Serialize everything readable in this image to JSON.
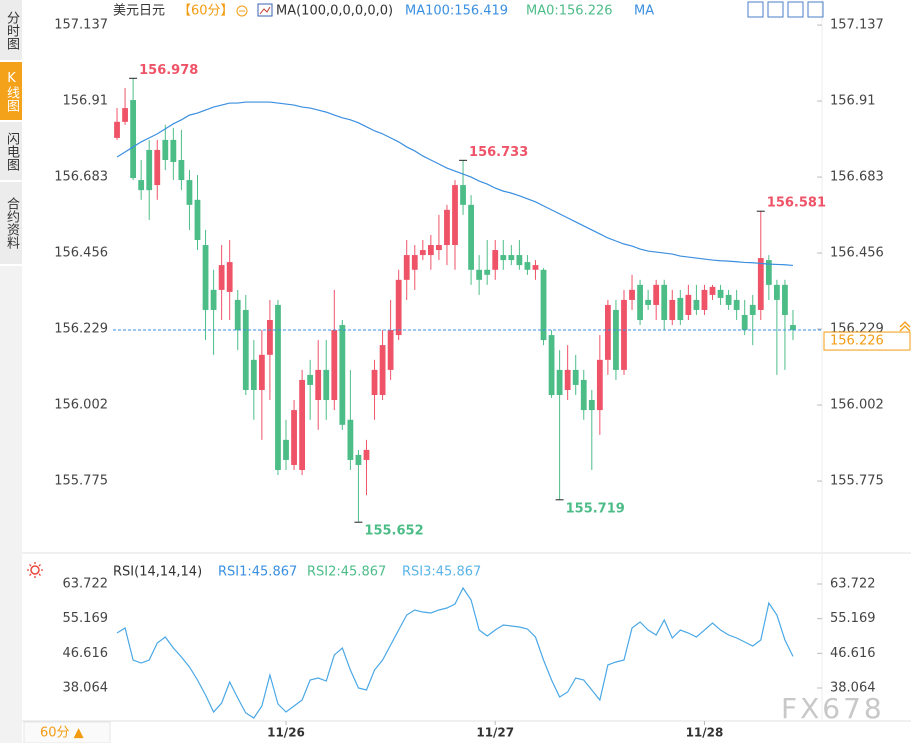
{
  "chart_data": [
    {
      "type": "candlestick",
      "title": "美元日元",
      "period": "【60分】",
      "indicator": "MA(100,0,0,0,0,0)",
      "legend_items": [
        {
          "text": "MA100:156.419",
          "color": "#3a8fe0"
        },
        {
          "text": "MA0:156.226",
          "color": "#4dbd88"
        },
        {
          "text": "MA",
          "color": "#3a8fe0"
        }
      ],
      "categories": [
        null,
        null,
        null,
        null,
        null,
        null,
        null,
        null,
        null,
        null,
        null,
        null,
        null,
        null,
        null,
        null,
        null,
        null,
        null,
        null,
        null,
        "11/26",
        null,
        null,
        null,
        null,
        null,
        null,
        null,
        null,
        null,
        null,
        null,
        null,
        null,
        null,
        null,
        null,
        null,
        null,
        null,
        null,
        null,
        null,
        null,
        null,
        null,
        "11/27",
        null,
        null,
        null,
        null,
        null,
        null,
        null,
        null,
        null,
        null,
        null,
        null,
        null,
        null,
        null,
        null,
        null,
        null,
        null,
        null,
        null,
        null,
        null,
        null,
        null,
        "11/28",
        null,
        null,
        null,
        null,
        null,
        null,
        null,
        null,
        null,
        null,
        null
      ],
      "open": [
        156.8,
        156.848,
        156.913,
        156.674,
        156.764,
        156.659,
        156.794,
        156.794,
        156.734,
        156.674,
        156.615,
        156.48,
        156.346,
        156.346,
        156.34,
        156.316,
        156.286,
        156.137,
        156.047,
        156.152,
        156.301,
        155.898,
        155.823,
        155.808,
        156.092,
        156.017,
        156.107,
        156.017,
        156.241,
        155.958,
        155.853,
        155.838,
        156.032,
        156.032,
        156.107,
        156.211,
        156.376,
        156.406,
        156.45,
        156.45,
        156.465,
        156.48,
        156.48,
        156.659,
        156.6,
        156.406,
        156.406,
        156.406,
        156.45,
        156.45,
        156.45,
        156.429,
        156.406,
        156.406,
        156.211,
        156.107,
        156.047,
        156.107,
        156.077,
        156.017,
        155.987,
        156.137,
        156.286,
        156.107,
        156.316,
        156.361,
        156.316,
        156.301,
        156.361,
        156.256,
        156.322,
        156.271,
        156.316,
        156.286,
        156.331,
        156.346,
        156.331,
        156.316,
        156.271,
        156.301,
        156.286,
        156.435,
        156.361,
        156.361,
        156.241
      ],
      "high": [
        156.889,
        156.949,
        156.978,
        156.734,
        156.794,
        156.794,
        156.839,
        156.83,
        156.824,
        156.704,
        156.689,
        156.525,
        156.406,
        156.48,
        156.495,
        156.346,
        156.331,
        156.196,
        156.226,
        156.316,
        156.316,
        155.958,
        156.017,
        156.107,
        156.137,
        156.196,
        156.196,
        156.346,
        156.256,
        156.107,
        155.868,
        155.898,
        156.137,
        156.226,
        156.316,
        156.406,
        156.495,
        156.48,
        156.495,
        156.51,
        156.57,
        156.6,
        156.674,
        156.733,
        156.629,
        156.45,
        156.495,
        156.495,
        156.495,
        156.48,
        156.495,
        156.45,
        156.435,
        156.411,
        156.226,
        156.166,
        156.181,
        156.152,
        156.107,
        156.047,
        156.211,
        156.316,
        156.316,
        156.346,
        156.391,
        156.376,
        156.346,
        156.376,
        156.376,
        156.346,
        156.346,
        156.361,
        156.361,
        156.361,
        156.361,
        156.361,
        156.346,
        156.346,
        156.316,
        156.331,
        156.581,
        156.45,
        156.376,
        156.376,
        156.286
      ],
      "low": [
        156.794,
        156.839,
        156.674,
        156.615,
        156.555,
        156.615,
        156.704,
        156.674,
        156.644,
        156.525,
        156.465,
        156.196,
        156.152,
        156.256,
        156.256,
        156.166,
        156.032,
        155.958,
        155.898,
        156.017,
        155.793,
        155.808,
        155.808,
        155.793,
        155.958,
        155.928,
        155.958,
        155.987,
        155.928,
        155.808,
        155.652,
        155.733,
        155.958,
        156.017,
        156.077,
        156.196,
        156.316,
        156.346,
        156.435,
        156.406,
        156.435,
        156.42,
        156.406,
        156.57,
        156.361,
        156.331,
        156.361,
        156.376,
        156.406,
        156.42,
        156.406,
        156.391,
        156.376,
        156.181,
        156.023,
        155.719,
        156.017,
        156.032,
        155.958,
        155.808,
        155.913,
        156.092,
        156.077,
        156.092,
        156.286,
        156.241,
        156.286,
        156.256,
        156.226,
        156.241,
        156.241,
        156.256,
        156.271,
        156.271,
        156.316,
        156.301,
        156.286,
        156.256,
        156.211,
        156.181,
        156.256,
        156.316,
        156.092,
        156.107,
        156.196
      ],
      "close": [
        156.848,
        156.889,
        156.68,
        156.644,
        156.644,
        156.764,
        156.734,
        156.728,
        156.674,
        156.6,
        156.495,
        156.286,
        156.286,
        156.42,
        156.429,
        156.226,
        156.047,
        156.047,
        156.152,
        156.256,
        155.808,
        155.838,
        155.987,
        156.077,
        156.062,
        156.107,
        156.017,
        156.226,
        155.943,
        155.838,
        155.823,
        155.868,
        156.107,
        156.181,
        156.226,
        156.376,
        156.45,
        156.45,
        156.465,
        156.48,
        156.48,
        156.585,
        156.659,
        156.6,
        156.406,
        156.376,
        156.391,
        156.465,
        156.435,
        156.435,
        156.42,
        156.406,
        156.42,
        156.196,
        156.032,
        156.032,
        156.107,
        156.062,
        155.987,
        155.987,
        156.137,
        156.301,
        156.107,
        156.316,
        156.346,
        156.256,
        156.301,
        156.361,
        156.256,
        156.316,
        156.256,
        156.331,
        156.286,
        156.346,
        156.355,
        156.322,
        156.301,
        156.286,
        156.226,
        156.271,
        156.441,
        156.361,
        156.316,
        156.271,
        156.226
      ],
      "up_color": "#ef5367",
      "down_color": "#4dbd88",
      "series": [
        {
          "color": "#3a8fe0",
          "values": [
            156.743,
            156.758,
            156.773,
            156.788,
            156.8,
            156.812,
            156.827,
            156.842,
            156.854,
            156.868,
            156.874,
            156.883,
            156.892,
            156.898,
            156.904,
            156.904,
            156.907,
            156.907,
            156.907,
            156.907,
            156.904,
            156.901,
            156.898,
            156.892,
            156.889,
            156.883,
            156.877,
            156.868,
            156.86,
            156.854,
            156.845,
            156.833,
            156.821,
            156.812,
            156.8,
            156.788,
            156.773,
            156.761,
            156.746,
            156.734,
            156.722,
            156.71,
            156.701,
            156.692,
            156.683,
            156.671,
            156.662,
            156.65,
            156.641,
            156.635,
            156.627,
            156.618,
            156.609,
            156.597,
            156.585,
            156.573,
            156.561,
            156.549,
            156.537,
            156.525,
            156.513,
            156.501,
            156.492,
            156.483,
            156.477,
            156.468,
            156.462,
            156.459,
            156.456,
            156.453,
            156.447,
            156.444,
            156.441,
            156.438,
            156.435,
            156.433,
            156.432,
            156.43,
            156.428,
            156.427,
            156.425,
            156.423,
            156.422,
            156.421,
            156.419
          ]
        }
      ],
      "ylim": [
        155.575,
        157.182
      ],
      "yticks": [
        157.137,
        156.91,
        156.683,
        156.456,
        156.229,
        156.002,
        155.775
      ],
      "last_price_color": "#f39c12"
    },
    {
      "type": "line",
      "title": "RSI(14,14,14)",
      "legend_items": [
        {
          "text": "RSI1:45.867",
          "color": "#3a8fe0"
        },
        {
          "text": "RSI2:45.867",
          "color": "#4dbd88"
        },
        {
          "text": "RSI3:45.867",
          "color": "#5ab4e8"
        }
      ],
      "series": [
        {
          "color": "#4aa8e6",
          "values": [
            51.63,
            52.87,
            44.97,
            44.23,
            44.97,
            49.17,
            50.65,
            47.93,
            45.71,
            43.25,
            40.04,
            36.34,
            32.14,
            34.36,
            39.55,
            35.6,
            31.9,
            30.66,
            33.62,
            41.27,
            34.12,
            32.14,
            33.62,
            35.1,
            40.04,
            40.53,
            39.79,
            46.21,
            47.93,
            42.5,
            38.07,
            37.57,
            42.5,
            44.97,
            48.67,
            52.37,
            56.07,
            57.31,
            56.81,
            56.57,
            57.31,
            57.8,
            58.79,
            62.74,
            59.77,
            52.37,
            50.89,
            52.37,
            53.61,
            53.36,
            53.11,
            52.62,
            50.65,
            44.97,
            40.04,
            35.84,
            37.08,
            40.53,
            40.04,
            37.57,
            35.1,
            43.74,
            44.48,
            44.97,
            52.87,
            54.35,
            52.37,
            51.14,
            54.84,
            50.4,
            52.37,
            51.63,
            50.65,
            52.37,
            54.1,
            52.37,
            51.14,
            50.4,
            49.41,
            48.43,
            49.91,
            59.03,
            56.07,
            49.91,
            45.867
          ]
        }
      ],
      "ylim": [
        30.17,
        69.15
      ],
      "yticks": [
        63.722,
        55.169,
        46.616,
        38.064
      ]
    }
  ],
  "ui": {
    "tabs": [
      "分时图",
      "K线图",
      "闪电图",
      "合约资料"
    ],
    "period_button": "60分 ▲",
    "watermark": "FX678"
  }
}
